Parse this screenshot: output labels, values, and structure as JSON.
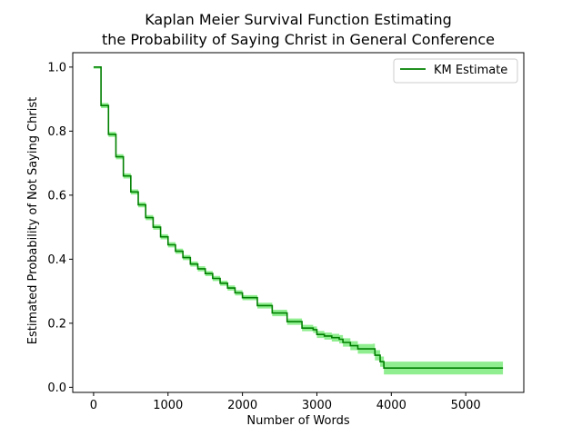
{
  "chart_data": {
    "type": "line",
    "title": "Kaplan Meier Survival Function Estimating",
    "subtitle": "the Probability of Saying Christ in General Conference",
    "xlabel": "Number of Words",
    "ylabel": "Estimated Probability of Not Saying Christ",
    "xlim": [
      -280,
      5780
    ],
    "ylim": [
      -0.016,
      1.045
    ],
    "xticks": [
      0,
      1000,
      2000,
      3000,
      4000,
      5000
    ],
    "xtick_labels": [
      "0",
      "1000",
      "2000",
      "3000",
      "4000",
      "5000"
    ],
    "yticks": [
      0.0,
      0.2,
      0.4,
      0.6,
      0.8,
      1.0
    ],
    "ytick_labels": [
      "0.0",
      "0.2",
      "0.4",
      "0.6",
      "0.8",
      "1.0"
    ],
    "grid": false,
    "legend_position": "top-right",
    "colors": {
      "line": "#008000",
      "band": "#90ee90"
    },
    "series": [
      {
        "name": "KM Estimate",
        "x": [
          0,
          100,
          200,
          300,
          400,
          500,
          600,
          700,
          800,
          900,
          1000,
          1100,
          1200,
          1300,
          1400,
          1500,
          1600,
          1700,
          1800,
          1900,
          2000,
          2200,
          2400,
          2600,
          2800,
          2950,
          3000,
          3100,
          3200,
          3300,
          3350,
          3450,
          3550,
          3750,
          3780,
          3850,
          3900,
          5500
        ],
        "y": [
          1.0,
          0.88,
          0.79,
          0.72,
          0.66,
          0.61,
          0.57,
          0.53,
          0.5,
          0.47,
          0.445,
          0.425,
          0.405,
          0.385,
          0.37,
          0.355,
          0.34,
          0.325,
          0.31,
          0.295,
          0.28,
          0.255,
          0.232,
          0.205,
          0.185,
          0.18,
          0.165,
          0.16,
          0.155,
          0.15,
          0.14,
          0.13,
          0.12,
          0.12,
          0.1,
          0.08,
          0.06,
          0.06
        ],
        "ci_low": [
          0.995,
          0.872,
          0.782,
          0.712,
          0.652,
          0.602,
          0.562,
          0.522,
          0.492,
          0.462,
          0.437,
          0.417,
          0.397,
          0.377,
          0.362,
          0.347,
          0.332,
          0.317,
          0.302,
          0.287,
          0.272,
          0.246,
          0.222,
          0.195,
          0.175,
          0.17,
          0.154,
          0.149,
          0.143,
          0.137,
          0.127,
          0.116,
          0.105,
          0.104,
          0.084,
          0.064,
          0.04,
          0.04
        ],
        "ci_high": [
          1.0,
          0.888,
          0.798,
          0.728,
          0.668,
          0.618,
          0.578,
          0.538,
          0.508,
          0.478,
          0.453,
          0.433,
          0.413,
          0.393,
          0.378,
          0.363,
          0.348,
          0.333,
          0.318,
          0.303,
          0.288,
          0.264,
          0.242,
          0.215,
          0.195,
          0.19,
          0.176,
          0.171,
          0.167,
          0.163,
          0.153,
          0.144,
          0.135,
          0.136,
          0.116,
          0.096,
          0.08,
          0.08
        ]
      }
    ]
  }
}
